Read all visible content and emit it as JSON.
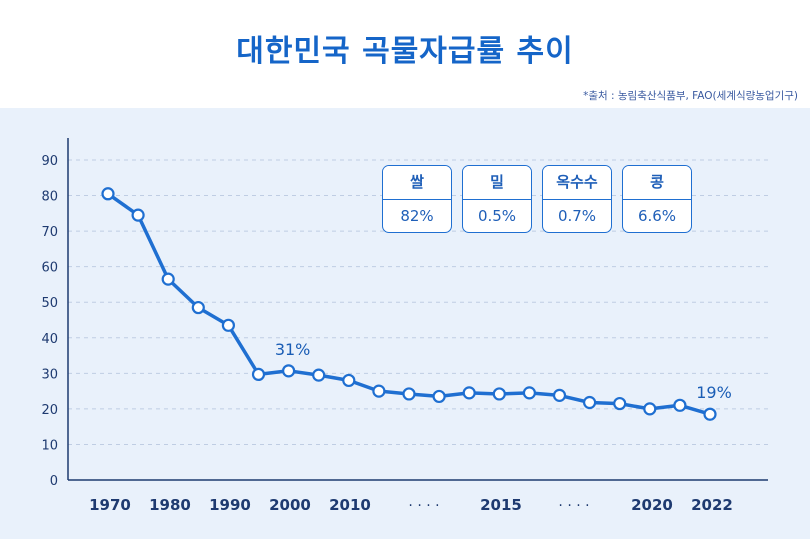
{
  "title": "대한민국 곡물자급률 추이",
  "source": "*출처 : 농림축산식품부, FAO(세계식량농업기구)",
  "colors": {
    "accent": "#1565c8",
    "line": "#1f6fd1",
    "panel": "#e9f1fb",
    "axis_text": "#1e3a70"
  },
  "cards": [
    {
      "name": "쌀",
      "value": "82%"
    },
    {
      "name": "밀",
      "value": "0.5%"
    },
    {
      "name": "옥수수",
      "value": "0.7%"
    },
    {
      "name": "콩",
      "value": "6.6%"
    }
  ],
  "chart_data": {
    "type": "line",
    "ylim": [
      0,
      90
    ],
    "yticks": [
      0,
      10,
      20,
      30,
      40,
      50,
      60,
      70,
      80,
      90
    ],
    "grid": true,
    "x_tick_labels": [
      "1970",
      "1980",
      "1990",
      "2000",
      "2010",
      "· · · ·",
      "2015",
      "· · · ·",
      "2020",
      "2022"
    ],
    "series": [
      {
        "values": [
          80.5,
          74.5,
          56.5,
          48.5,
          43.5,
          29.7,
          30.7,
          29.5,
          28.0,
          25.0,
          24.2,
          23.5,
          24.5,
          24.2,
          24.5,
          23.8,
          21.8,
          21.5,
          20.0,
          21.0,
          18.5
        ]
      }
    ],
    "annotations": [
      {
        "point_index": 6,
        "text": "31%"
      },
      {
        "point_index": 20,
        "text": "19%"
      }
    ]
  }
}
